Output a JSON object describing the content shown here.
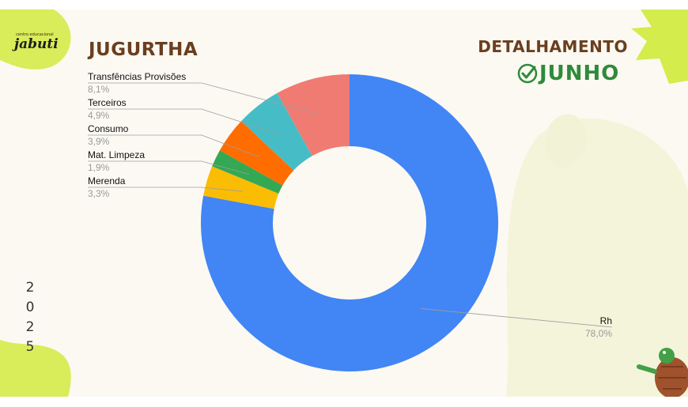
{
  "header": {
    "logo_small": "centro educacional",
    "logo_big": "jabuti",
    "title": "JUGURTHA",
    "detail": "DETALHAMENTO",
    "month": "JUNHO"
  },
  "year_digits": [
    "2",
    "0",
    "2",
    "5"
  ],
  "colors": {
    "title": "#6a3e1f",
    "month": "#2f8a3a",
    "accent_green": "#d9ec5a",
    "background": "#fbf9f1"
  },
  "chart_data": {
    "type": "pie",
    "donut": true,
    "categories": [
      "Rh",
      "Merenda",
      "Mat. Limpeza",
      "Consumo",
      "Terceiros",
      "Transfências Provisões"
    ],
    "values": [
      78.0,
      3.3,
      1.9,
      3.9,
      4.9,
      8.1
    ],
    "value_labels": [
      "78,0%",
      "3,3%",
      "1,9%",
      "3,9%",
      "4,9%",
      "8,1%"
    ],
    "colors": [
      "#4285f4",
      "#fbbc04",
      "#34a853",
      "#ff6d01",
      "#46bdc6",
      "#f07b72"
    ],
    "legend": "callout labels"
  }
}
